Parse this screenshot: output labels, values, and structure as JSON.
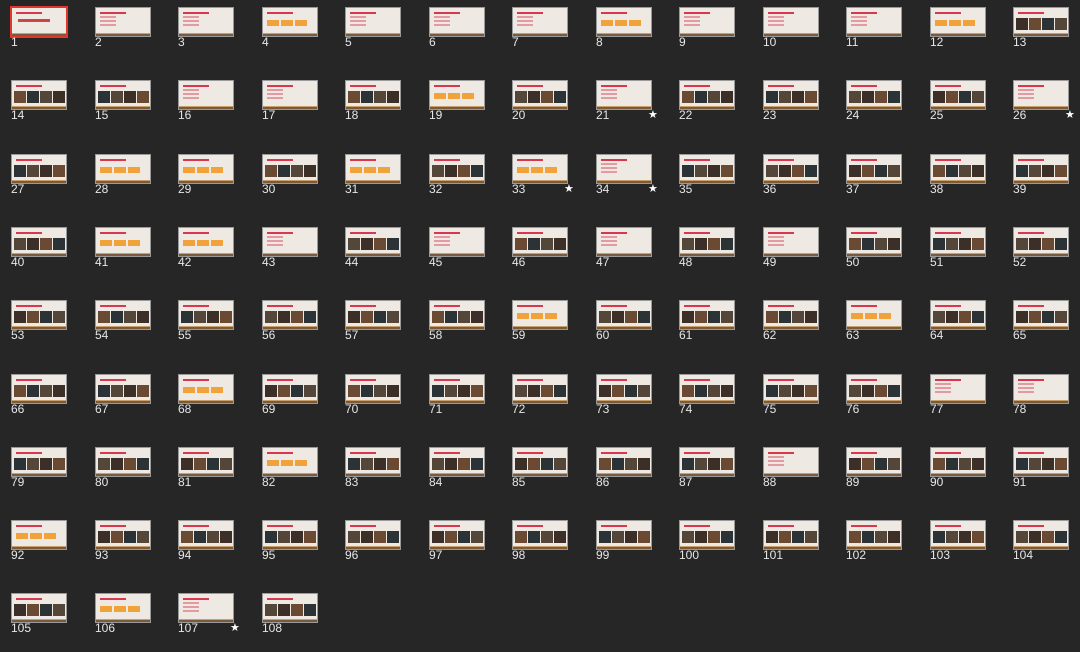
{
  "view": "slide-sorter",
  "selected_slide": "1",
  "colors": {
    "background": "#262626",
    "selection": "#e0362b",
    "accent": "#d7384e"
  },
  "slides": [
    {
      "n": "1",
      "star": false,
      "kind": "title"
    },
    {
      "n": "2",
      "star": false,
      "kind": "text"
    },
    {
      "n": "3",
      "star": false,
      "kind": "text"
    },
    {
      "n": "4",
      "star": false,
      "kind": "boxes"
    },
    {
      "n": "5",
      "star": false,
      "kind": "text"
    },
    {
      "n": "6",
      "star": false,
      "kind": "text"
    },
    {
      "n": "7",
      "star": false,
      "kind": "text"
    },
    {
      "n": "8",
      "star": false,
      "kind": "boxes"
    },
    {
      "n": "9",
      "star": false,
      "kind": "text"
    },
    {
      "n": "10",
      "star": false,
      "kind": "text"
    },
    {
      "n": "11",
      "star": false,
      "kind": "text"
    },
    {
      "n": "12",
      "star": false,
      "kind": "boxes"
    },
    {
      "n": "13",
      "star": false,
      "kind": "photo"
    },
    {
      "n": "14",
      "star": false,
      "kind": "photo"
    },
    {
      "n": "15",
      "star": false,
      "kind": "photo"
    },
    {
      "n": "16",
      "star": false,
      "kind": "text"
    },
    {
      "n": "17",
      "star": false,
      "kind": "text"
    },
    {
      "n": "18",
      "star": false,
      "kind": "photo"
    },
    {
      "n": "19",
      "star": false,
      "kind": "boxes"
    },
    {
      "n": "20",
      "star": false,
      "kind": "photo"
    },
    {
      "n": "21",
      "star": true,
      "kind": "text"
    },
    {
      "n": "22",
      "star": false,
      "kind": "photo"
    },
    {
      "n": "23",
      "star": false,
      "kind": "photo"
    },
    {
      "n": "24",
      "star": false,
      "kind": "photo"
    },
    {
      "n": "25",
      "star": false,
      "kind": "photo"
    },
    {
      "n": "26",
      "star": true,
      "kind": "text"
    },
    {
      "n": "27",
      "star": false,
      "kind": "photo"
    },
    {
      "n": "28",
      "star": false,
      "kind": "boxes"
    },
    {
      "n": "29",
      "star": false,
      "kind": "boxes"
    },
    {
      "n": "30",
      "star": false,
      "kind": "photo"
    },
    {
      "n": "31",
      "star": false,
      "kind": "boxes"
    },
    {
      "n": "32",
      "star": false,
      "kind": "photo"
    },
    {
      "n": "33",
      "star": true,
      "kind": "boxes"
    },
    {
      "n": "34",
      "star": true,
      "kind": "text"
    },
    {
      "n": "35",
      "star": false,
      "kind": "photo"
    },
    {
      "n": "36",
      "star": false,
      "kind": "photo"
    },
    {
      "n": "37",
      "star": false,
      "kind": "photo"
    },
    {
      "n": "38",
      "star": false,
      "kind": "photo"
    },
    {
      "n": "39",
      "star": false,
      "kind": "photo"
    },
    {
      "n": "40",
      "star": false,
      "kind": "photo"
    },
    {
      "n": "41",
      "star": false,
      "kind": "boxes"
    },
    {
      "n": "42",
      "star": false,
      "kind": "boxes"
    },
    {
      "n": "43",
      "star": false,
      "kind": "text"
    },
    {
      "n": "44",
      "star": false,
      "kind": "photo"
    },
    {
      "n": "45",
      "star": false,
      "kind": "text"
    },
    {
      "n": "46",
      "star": false,
      "kind": "photo"
    },
    {
      "n": "47",
      "star": false,
      "kind": "text"
    },
    {
      "n": "48",
      "star": false,
      "kind": "photo"
    },
    {
      "n": "49",
      "star": false,
      "kind": "text"
    },
    {
      "n": "50",
      "star": false,
      "kind": "photo"
    },
    {
      "n": "51",
      "star": false,
      "kind": "photo"
    },
    {
      "n": "52",
      "star": false,
      "kind": "photo"
    },
    {
      "n": "53",
      "star": false,
      "kind": "photo"
    },
    {
      "n": "54",
      "star": false,
      "kind": "photo"
    },
    {
      "n": "55",
      "star": false,
      "kind": "photo"
    },
    {
      "n": "56",
      "star": false,
      "kind": "photo"
    },
    {
      "n": "57",
      "star": false,
      "kind": "photo"
    },
    {
      "n": "58",
      "star": false,
      "kind": "photo"
    },
    {
      "n": "59",
      "star": false,
      "kind": "boxes"
    },
    {
      "n": "60",
      "star": false,
      "kind": "photo"
    },
    {
      "n": "61",
      "star": false,
      "kind": "photo"
    },
    {
      "n": "62",
      "star": false,
      "kind": "photo"
    },
    {
      "n": "63",
      "star": false,
      "kind": "boxes"
    },
    {
      "n": "64",
      "star": false,
      "kind": "photo"
    },
    {
      "n": "65",
      "star": false,
      "kind": "photo"
    },
    {
      "n": "66",
      "star": false,
      "kind": "photo"
    },
    {
      "n": "67",
      "star": false,
      "kind": "photo"
    },
    {
      "n": "68",
      "star": false,
      "kind": "boxes"
    },
    {
      "n": "69",
      "star": false,
      "kind": "photo"
    },
    {
      "n": "70",
      "star": false,
      "kind": "photo"
    },
    {
      "n": "71",
      "star": false,
      "kind": "photo"
    },
    {
      "n": "72",
      "star": false,
      "kind": "photo"
    },
    {
      "n": "73",
      "star": false,
      "kind": "photo"
    },
    {
      "n": "74",
      "star": false,
      "kind": "photo"
    },
    {
      "n": "75",
      "star": false,
      "kind": "photo"
    },
    {
      "n": "76",
      "star": false,
      "kind": "photo"
    },
    {
      "n": "77",
      "star": false,
      "kind": "text"
    },
    {
      "n": "78",
      "star": false,
      "kind": "text"
    },
    {
      "n": "79",
      "star": false,
      "kind": "photo"
    },
    {
      "n": "80",
      "star": false,
      "kind": "photo"
    },
    {
      "n": "81",
      "star": false,
      "kind": "photo"
    },
    {
      "n": "82",
      "star": false,
      "kind": "boxes"
    },
    {
      "n": "83",
      "star": false,
      "kind": "photo"
    },
    {
      "n": "84",
      "star": false,
      "kind": "photo"
    },
    {
      "n": "85",
      "star": false,
      "kind": "photo"
    },
    {
      "n": "86",
      "star": false,
      "kind": "photo"
    },
    {
      "n": "87",
      "star": false,
      "kind": "photo"
    },
    {
      "n": "88",
      "star": false,
      "kind": "text"
    },
    {
      "n": "89",
      "star": false,
      "kind": "photo"
    },
    {
      "n": "90",
      "star": false,
      "kind": "photo"
    },
    {
      "n": "91",
      "star": false,
      "kind": "photo"
    },
    {
      "n": "92",
      "star": false,
      "kind": "boxes"
    },
    {
      "n": "93",
      "star": false,
      "kind": "photo"
    },
    {
      "n": "94",
      "star": false,
      "kind": "photo"
    },
    {
      "n": "95",
      "star": false,
      "kind": "photo"
    },
    {
      "n": "96",
      "star": false,
      "kind": "photo"
    },
    {
      "n": "97",
      "star": false,
      "kind": "photo"
    },
    {
      "n": "98",
      "star": false,
      "kind": "photo"
    },
    {
      "n": "99",
      "star": false,
      "kind": "photo"
    },
    {
      "n": "100",
      "star": false,
      "kind": "photo"
    },
    {
      "n": "101",
      "star": false,
      "kind": "photo"
    },
    {
      "n": "102",
      "star": false,
      "kind": "photo"
    },
    {
      "n": "103",
      "star": false,
      "kind": "photo"
    },
    {
      "n": "104",
      "star": false,
      "kind": "photo"
    },
    {
      "n": "105",
      "star": false,
      "kind": "photo"
    },
    {
      "n": "106",
      "star": false,
      "kind": "boxes"
    },
    {
      "n": "107",
      "star": true,
      "kind": "text"
    },
    {
      "n": "108",
      "star": false,
      "kind": "photo"
    }
  ]
}
